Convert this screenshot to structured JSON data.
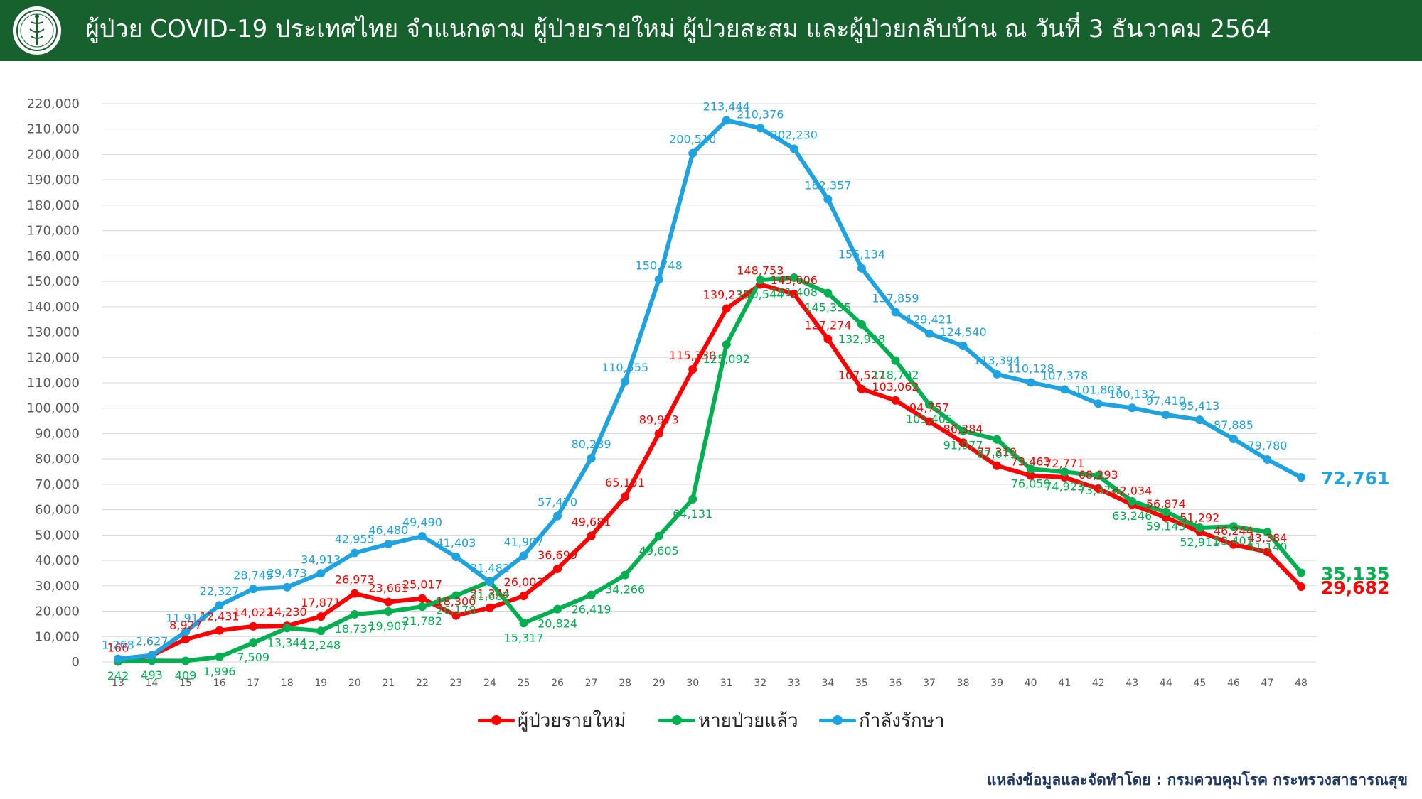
{
  "header": {
    "title": "ผู้ป่วย COVID-19 ประเทศไทย จำแนกตาม ผู้ป่วยรายใหม่ ผู้ป่วยสะสม และผู้ป่วยกลับบ้าน  ณ วันที่ 3 ธันวาคม 2564",
    "logo_icon": "ministry-seal-icon",
    "bar_color": "#17612e"
  },
  "source_note": "แหล่งข้อมูลและจัดทำโดย : กรมควบคุมโรค กระทรวงสาธารณสุข",
  "chart_data": {
    "type": "line",
    "title": "",
    "xlabel": "",
    "ylabel": "",
    "ylim": [
      0,
      220000
    ],
    "ytick_step": 10000,
    "grid": true,
    "legend_placement": "bottom-center",
    "categories": [
      "13",
      "14",
      "15",
      "16",
      "17",
      "18",
      "19",
      "20",
      "21",
      "22",
      "23",
      "24",
      "25",
      "26",
      "27",
      "28",
      "29",
      "30",
      "31",
      "32",
      "33",
      "34",
      "35",
      "36",
      "37",
      "38",
      "39",
      "40",
      "41",
      "42",
      "43",
      "44",
      "45",
      "46",
      "47",
      "48"
    ],
    "series": [
      {
        "name": "ผู้ป่วยรายใหม่",
        "color": "#ff0000",
        "values": [
          166,
          2627,
          8927,
          12431,
          14022,
          14230,
          17871,
          26973,
          23661,
          25017,
          18300,
          21344,
          26003,
          36699,
          49681,
          65151,
          89973,
          115330,
          139235,
          148753,
          145006,
          127274,
          107527,
          103062,
          94757,
          86384,
          77319,
          73463,
          72771,
          68293,
          62034,
          56874,
          51292,
          46244,
          43384,
          29682
        ],
        "labels": [
          "166",
          "2,627",
          "8,927",
          "12,431",
          "14,022",
          "14,230",
          "17,871",
          "26,973",
          "23,661",
          "25,017",
          "18,300",
          "21,344",
          "26,003",
          "36,699",
          "49,681",
          "65,151",
          "89,973",
          "115,330",
          "139,235",
          "148,753",
          "145,006",
          "127,274",
          "107,527",
          "103,062",
          "94,757",
          "86,384",
          "77,319",
          "73,463",
          "72,771",
          "68,293",
          "62,034",
          "56,874",
          "51,292",
          "46,244",
          "43,384",
          "29,682"
        ]
      },
      {
        "name": "หายป่วยแล้ว",
        "color": "#00b050",
        "values": [
          242,
          493,
          409,
          1996,
          7509,
          13344,
          12248,
          18737,
          19907,
          21782,
          26178,
          31687,
          15317,
          20824,
          26419,
          34266,
          49605,
          64131,
          125092,
          150544,
          151408,
          145355,
          132998,
          118792,
          101405,
          91077,
          87671,
          76059,
          74923,
          73374,
          63246,
          59143,
          52911,
          53401,
          51140,
          35135
        ],
        "labels": [
          "242",
          "493",
          "409",
          "1,996",
          "7,509",
          "13,344",
          "12,248",
          "18,737",
          "19,907",
          "21,782",
          "26,178",
          "31,687",
          "15,317",
          "20,824",
          "26,419",
          "34,266",
          "49,605",
          "64,131",
          "125,092",
          "150,544",
          "151,408",
          "145,355",
          "132,998",
          "118,792",
          "101,405",
          "91,077",
          "87,671",
          "76,059",
          "74,923",
          "73,374",
          "63,246",
          "59,143",
          "52,911",
          "53,401",
          "51,140",
          "35,135"
        ]
      },
      {
        "name": "กำลังรักษา",
        "color": "#1fa3e0",
        "values": [
          1268,
          2627,
          11914,
          22327,
          28745,
          29473,
          34913,
          42955,
          46480,
          49490,
          41403,
          31482,
          41907,
          57470,
          80289,
          110555,
          150748,
          200510,
          213444,
          210376,
          202230,
          182357,
          155134,
          137859,
          129421,
          124540,
          113394,
          110128,
          107378,
          101803,
          100132,
          97410,
          95413,
          87885,
          79780,
          72761
        ],
        "labels": [
          "1,268",
          "2,627",
          "11,914",
          "22,327",
          "28,745",
          "29,473",
          "34,913",
          "42,955",
          "46,480",
          "49,490",
          "41,403",
          "31,482",
          "41,907",
          "57,470",
          "80,289",
          "110,555",
          "150,748",
          "200,510",
          "213,444",
          "210,376",
          "202,230",
          "182,357",
          "155,134",
          "137,859",
          "129,421",
          "124,540",
          "113,394",
          "110,128",
          "107,378",
          "101,803",
          "100,132",
          "97,410",
          "95,413",
          "87,885",
          "79,780",
          "72,761"
        ]
      }
    ]
  }
}
